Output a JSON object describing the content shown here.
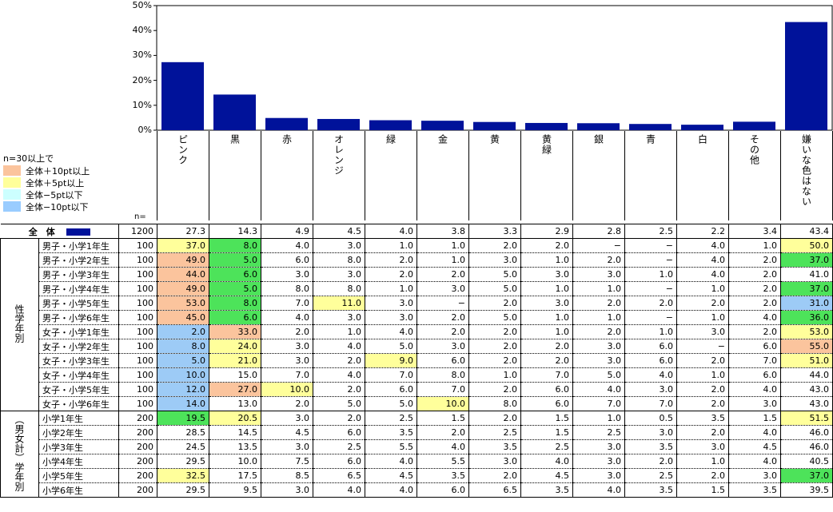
{
  "chart_data": {
    "type": "bar",
    "categories": [
      "ピンク",
      "黒",
      "赤",
      "オレンジ",
      "緑",
      "金",
      "黄",
      "黄緑",
      "銀",
      "青",
      "白",
      "その他",
      "嫌いな色はない"
    ],
    "values": [
      27.3,
      14.3,
      4.9,
      4.5,
      4.0,
      3.8,
      3.3,
      2.9,
      2.8,
      2.5,
      2.2,
      3.4,
      43.4
    ],
    "ylim": [
      0,
      50
    ],
    "yticks": [
      "0%",
      "10%",
      "20%",
      "30%",
      "40%",
      "50%"
    ],
    "bar_color": "#00129a"
  },
  "legend": {
    "title": "n=30以上で",
    "items": [
      {
        "label": "全体＋10pt以上",
        "color": "#fbc49d"
      },
      {
        "label": "全体＋5pt以上",
        "color": "#ffff9b"
      },
      {
        "label": "全体−5pt以下",
        "color": "#ccffff"
      },
      {
        "label": "全体−10pt以下",
        "color": "#99ccff"
      }
    ]
  },
  "n_label": "n=",
  "total_row": {
    "label": "全　体",
    "n": "1200",
    "values": [
      "27.3",
      "14.3",
      "4.9",
      "4.5",
      "4.0",
      "3.8",
      "3.3",
      "2.9",
      "2.8",
      "2.5",
      "2.2",
      "3.4",
      "43.4"
    ]
  },
  "groups": [
    {
      "label": "性学年別",
      "rows": [
        {
          "label": "男子・小学1年生",
          "n": "100",
          "values": [
            "37.0",
            "8.0",
            "4.0",
            "3.0",
            "1.0",
            "1.0",
            "2.0",
            "2.0",
            "−",
            "−",
            "4.0",
            "1.0",
            "50.0"
          ],
          "hl": [
            "y",
            "g",
            "",
            "",
            "",
            "",
            "",
            "",
            "",
            "",
            "",
            "",
            "y"
          ]
        },
        {
          "label": "男子・小学2年生",
          "n": "100",
          "values": [
            "49.0",
            "5.0",
            "6.0",
            "8.0",
            "2.0",
            "1.0",
            "3.0",
            "1.0",
            "2.0",
            "−",
            "4.0",
            "2.0",
            "37.0"
          ],
          "hl": [
            "o",
            "g",
            "",
            "",
            "",
            "",
            "",
            "",
            "",
            "",
            "",
            "",
            "g"
          ]
        },
        {
          "label": "男子・小学3年生",
          "n": "100",
          "values": [
            "44.0",
            "6.0",
            "3.0",
            "3.0",
            "2.0",
            "2.0",
            "5.0",
            "3.0",
            "3.0",
            "1.0",
            "4.0",
            "2.0",
            "41.0"
          ],
          "hl": [
            "o",
            "g",
            "",
            "",
            "",
            "",
            "",
            "",
            "",
            "",
            "",
            "",
            ""
          ]
        },
        {
          "label": "男子・小学4年生",
          "n": "100",
          "values": [
            "49.0",
            "5.0",
            "8.0",
            "8.0",
            "1.0",
            "3.0",
            "5.0",
            "1.0",
            "1.0",
            "−",
            "1.0",
            "2.0",
            "37.0"
          ],
          "hl": [
            "o",
            "g",
            "",
            "",
            "",
            "",
            "",
            "",
            "",
            "",
            "",
            "",
            "g"
          ]
        },
        {
          "label": "男子・小学5年生",
          "n": "100",
          "values": [
            "53.0",
            "8.0",
            "7.0",
            "11.0",
            "3.0",
            "−",
            "2.0",
            "3.0",
            "2.0",
            "2.0",
            "2.0",
            "2.0",
            "31.0"
          ],
          "hl": [
            "o",
            "g",
            "",
            "y",
            "",
            "",
            "",
            "",
            "",
            "",
            "",
            "",
            "b"
          ]
        },
        {
          "label": "男子・小学6年生",
          "n": "100",
          "values": [
            "45.0",
            "6.0",
            "4.0",
            "3.0",
            "3.0",
            "2.0",
            "5.0",
            "1.0",
            "1.0",
            "−",
            "1.0",
            "4.0",
            "36.0"
          ],
          "hl": [
            "o",
            "g",
            "",
            "",
            "",
            "",
            "",
            "",
            "",
            "",
            "",
            "",
            "g"
          ]
        },
        {
          "label": "女子・小学1年生",
          "n": "100",
          "values": [
            "2.0",
            "33.0",
            "2.0",
            "1.0",
            "4.0",
            "2.0",
            "2.0",
            "1.0",
            "2.0",
            "1.0",
            "3.0",
            "2.0",
            "53.0"
          ],
          "hl": [
            "b",
            "o",
            "",
            "",
            "",
            "",
            "",
            "",
            "",
            "",
            "",
            "",
            "y"
          ]
        },
        {
          "label": "女子・小学2年生",
          "n": "100",
          "values": [
            "8.0",
            "24.0",
            "3.0",
            "4.0",
            "5.0",
            "3.0",
            "2.0",
            "2.0",
            "3.0",
            "6.0",
            "−",
            "6.0",
            "55.0"
          ],
          "hl": [
            "b",
            "y",
            "",
            "",
            "",
            "",
            "",
            "",
            "",
            "",
            "",
            "",
            "o"
          ]
        },
        {
          "label": "女子・小学3年生",
          "n": "100",
          "values": [
            "5.0",
            "21.0",
            "3.0",
            "2.0",
            "9.0",
            "6.0",
            "2.0",
            "2.0",
            "3.0",
            "6.0",
            "2.0",
            "7.0",
            "51.0"
          ],
          "hl": [
            "b",
            "y",
            "",
            "",
            "y",
            "",
            "",
            "",
            "",
            "",
            "",
            "",
            "y"
          ]
        },
        {
          "label": "女子・小学4年生",
          "n": "100",
          "values": [
            "10.0",
            "15.0",
            "7.0",
            "4.0",
            "7.0",
            "8.0",
            "1.0",
            "7.0",
            "5.0",
            "4.0",
            "1.0",
            "6.0",
            "44.0"
          ],
          "hl": [
            "b",
            "",
            "",
            "",
            "",
            "",
            "",
            "",
            "",
            "",
            "",
            "",
            ""
          ]
        },
        {
          "label": "女子・小学5年生",
          "n": "100",
          "values": [
            "12.0",
            "27.0",
            "10.0",
            "2.0",
            "6.0",
            "7.0",
            "2.0",
            "6.0",
            "4.0",
            "3.0",
            "2.0",
            "4.0",
            "43.0"
          ],
          "hl": [
            "b",
            "o",
            "y",
            "",
            "",
            "",
            "",
            "",
            "",
            "",
            "",
            "",
            ""
          ]
        },
        {
          "label": "女子・小学6年生",
          "n": "100",
          "values": [
            "14.0",
            "13.0",
            "2.0",
            "5.0",
            "5.0",
            "10.0",
            "8.0",
            "6.0",
            "7.0",
            "7.0",
            "2.0",
            "3.0",
            "43.0"
          ],
          "hl": [
            "b",
            "",
            "",
            "",
            "",
            "y",
            "",
            "",
            "",
            "",
            "",
            "",
            ""
          ]
        }
      ]
    },
    {
      "label": "（男女計）学年別",
      "rows": [
        {
          "label": "小学1年生",
          "n": "200",
          "values": [
            "19.5",
            "20.5",
            "3.0",
            "2.0",
            "2.5",
            "1.5",
            "2.0",
            "1.5",
            "1.0",
            "0.5",
            "3.5",
            "1.5",
            "51.5"
          ],
          "hl": [
            "g",
            "y",
            "",
            "",
            "",
            "",
            "",
            "",
            "",
            "",
            "",
            "",
            "y"
          ]
        },
        {
          "label": "小学2年生",
          "n": "200",
          "values": [
            "28.5",
            "14.5",
            "4.5",
            "6.0",
            "3.5",
            "2.0",
            "2.5",
            "1.5",
            "2.5",
            "3.0",
            "2.0",
            "4.0",
            "46.0"
          ],
          "hl": [
            "",
            "",
            "",
            "",
            "",
            "",
            "",
            "",
            "",
            "",
            "",
            "",
            ""
          ]
        },
        {
          "label": "小学3年生",
          "n": "200",
          "values": [
            "24.5",
            "13.5",
            "3.0",
            "2.5",
            "5.5",
            "4.0",
            "3.5",
            "2.5",
            "3.0",
            "3.5",
            "3.0",
            "4.5",
            "46.0"
          ],
          "hl": [
            "",
            "",
            "",
            "",
            "",
            "",
            "",
            "",
            "",
            "",
            "",
            "",
            ""
          ]
        },
        {
          "label": "小学4年生",
          "n": "200",
          "values": [
            "29.5",
            "10.0",
            "7.5",
            "6.0",
            "4.0",
            "5.5",
            "3.0",
            "4.0",
            "3.0",
            "2.0",
            "1.0",
            "4.0",
            "40.5"
          ],
          "hl": [
            "",
            "",
            "",
            "",
            "",
            "",
            "",
            "",
            "",
            "",
            "",
            "",
            ""
          ]
        },
        {
          "label": "小学5年生",
          "n": "200",
          "values": [
            "32.5",
            "17.5",
            "8.5",
            "6.5",
            "4.5",
            "3.5",
            "2.0",
            "4.5",
            "3.0",
            "2.5",
            "2.0",
            "3.0",
            "37.0"
          ],
          "hl": [
            "y",
            "",
            "",
            "",
            "",
            "",
            "",
            "",
            "",
            "",
            "",
            "",
            "g"
          ]
        },
        {
          "label": "小学6年生",
          "n": "200",
          "values": [
            "29.5",
            "9.5",
            "3.0",
            "4.0",
            "4.0",
            "6.0",
            "6.5",
            "3.5",
            "4.0",
            "3.5",
            "1.5",
            "3.5",
            "39.5"
          ],
          "hl": [
            "",
            "",
            "",
            "",
            "",
            "",
            "",
            "",
            "",
            "",
            "",
            "",
            ""
          ]
        }
      ]
    }
  ],
  "hl_colors": {
    "o": "#fbc49d",
    "y": "#ffff9b",
    "g": "#4de35a",
    "b": "#9dcbf6"
  }
}
